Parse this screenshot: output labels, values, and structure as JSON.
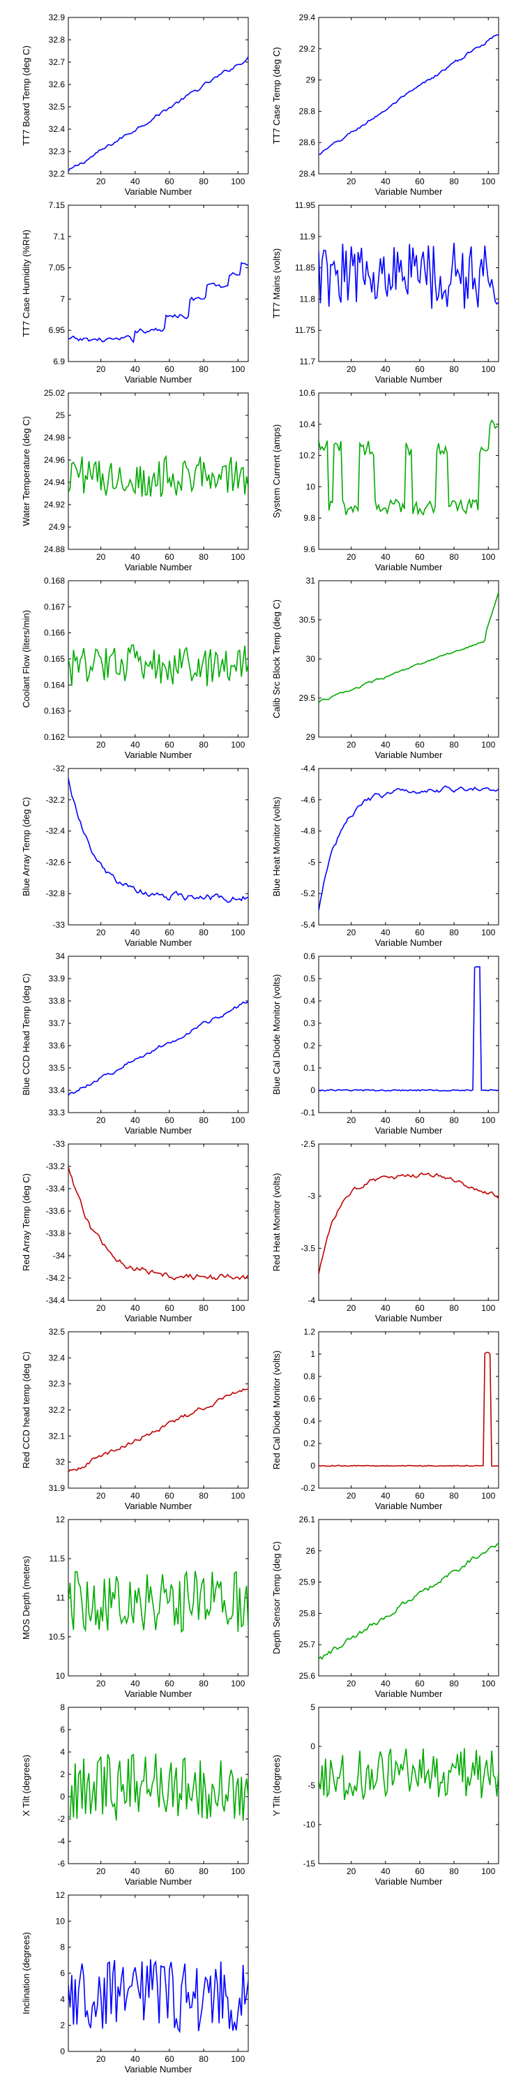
{
  "figure": {
    "colors": {
      "blue": "#0000ff",
      "green": "#00aa00",
      "red": "#c00000",
      "axis": "#000000"
    }
  },
  "chart_data": [
    {
      "type": "line",
      "ylabel": "TT7 Board Temp (deg C)",
      "xlabel": "Variable Number",
      "color": "blue",
      "xlim": [
        1,
        106
      ],
      "ylim": [
        32.2,
        32.9
      ],
      "yticks": [
        "32.2",
        "32.3",
        "32.4",
        "32.5",
        "32.6",
        "32.7",
        "32.8",
        "32.9"
      ],
      "xticks": [
        "20",
        "40",
        "60",
        "80",
        "100"
      ],
      "shape": "trend",
      "start": 32.21,
      "end": 32.72,
      "noise": 0.012
    },
    {
      "type": "line",
      "ylabel": "TT7 Case Temp (deg C)",
      "xlabel": "Variable Number",
      "color": "blue",
      "xlim": [
        1,
        106
      ],
      "ylim": [
        28.4,
        29.4
      ],
      "yticks": [
        "28.4",
        "28.6",
        "28.8",
        "29",
        "29.2",
        "29.4"
      ],
      "xticks": [
        "20",
        "40",
        "60",
        "80",
        "100"
      ],
      "shape": "trend",
      "start": 28.52,
      "end": 29.3,
      "noise": 0.015
    },
    {
      "type": "line",
      "ylabel": "TT7 Case Humidity (%RH)",
      "xlabel": "Variable Number",
      "color": "blue",
      "xlim": [
        1,
        106
      ],
      "ylim": [
        6.9,
        7.15
      ],
      "yticks": [
        "6.9",
        "6.95",
        "7",
        "7.05",
        "7.1",
        "7.15"
      ],
      "xticks": [
        "20",
        "40",
        "60",
        "80",
        "100"
      ],
      "shape": "steps",
      "levels": [
        [
          1,
          6.935
        ],
        [
          40,
          6.95
        ],
        [
          58,
          6.975
        ],
        [
          72,
          7.0
        ],
        [
          82,
          7.02
        ],
        [
          95,
          7.04
        ],
        [
          102,
          7.06
        ]
      ],
      "noise": 0.006
    },
    {
      "type": "line",
      "ylabel": "TT7 Mains  (volts)",
      "xlabel": "Variable Number",
      "color": "blue",
      "xlim": [
        1,
        106
      ],
      "ylim": [
        11.7,
        11.95
      ],
      "yticks": [
        "11.7",
        "11.75",
        "11.8",
        "11.85",
        "11.9",
        "11.95"
      ],
      "xticks": [
        "20",
        "40",
        "60",
        "80",
        "100"
      ],
      "shape": "noise",
      "mean": 11.84,
      "noise": 0.04
    },
    {
      "type": "line",
      "ylabel": "Water Temperature (deg C)",
      "xlabel": "Variable Number",
      "color": "green",
      "xlim": [
        1,
        106
      ],
      "ylim": [
        24.88,
        25.02
      ],
      "yticks": [
        "24.88",
        "24.9",
        "24.92",
        "24.94",
        "24.96",
        "24.98",
        "25",
        "25.02"
      ],
      "xticks": [
        "20",
        "40",
        "60",
        "80",
        "100"
      ],
      "shape": "noise",
      "mean": 24.945,
      "noise": 0.013
    },
    {
      "type": "line",
      "ylabel": "System Current (amps)",
      "xlabel": "Variable Number",
      "color": "green",
      "xlim": [
        1,
        106
      ],
      "ylim": [
        9.6,
        10.6
      ],
      "yticks": [
        "9.6",
        "9.8",
        "10",
        "10.2",
        "10.4",
        "10.6"
      ],
      "xticks": [
        "20",
        "40",
        "60",
        "80",
        "100"
      ],
      "shape": "switch",
      "low": 9.87,
      "high": 10.25,
      "noise": 0.05
    },
    {
      "type": "line",
      "ylabel": "Coolant Flow (liters/min)",
      "xlabel": "Variable Number",
      "color": "green",
      "xlim": [
        1,
        106
      ],
      "ylim": [
        0.162,
        0.168
      ],
      "yticks": [
        "0.162",
        "0.163",
        "0.164",
        "0.165",
        "0.166",
        "0.167",
        "0.168"
      ],
      "xticks": [
        "20",
        "40",
        "60",
        "80",
        "100"
      ],
      "shape": "noise",
      "mean": 0.1647,
      "noise": 0.0006
    },
    {
      "type": "line",
      "ylabel": "Calib Src Block Temp (deg C)",
      "xlabel": "Variable Number",
      "color": "green",
      "xlim": [
        1,
        106
      ],
      "ylim": [
        29,
        31
      ],
      "yticks": [
        "29",
        "29.5",
        "30",
        "30.5",
        "31"
      ],
      "xticks": [
        "20",
        "40",
        "60",
        "80",
        "100"
      ],
      "shape": "trend",
      "start": 29.45,
      "end": 30.3,
      "noise": 0.02,
      "tail": 30.85
    },
    {
      "type": "line",
      "ylabel": "Blue Array Temp (deg C)",
      "xlabel": "Variable Number",
      "color": "blue",
      "xlim": [
        1,
        106
      ],
      "ylim": [
        -33,
        -32
      ],
      "yticks": [
        "-33",
        "-32.8",
        "-32.6",
        "-32.4",
        "-32.2",
        "-32"
      ],
      "xticks": [
        "20",
        "40",
        "60",
        "80",
        "100"
      ],
      "shape": "decay",
      "start": -32.05,
      "end": -32.83,
      "rate": 0.07,
      "noise": 0.03
    },
    {
      "type": "line",
      "ylabel": "Blue Heat Monitor (volts)",
      "xlabel": "Variable Number",
      "color": "blue",
      "xlim": [
        1,
        106
      ],
      "ylim": [
        -5.4,
        -4.4
      ],
      "yticks": [
        "-5.4",
        "-5.2",
        "-5",
        "-4.8",
        "-4.6",
        "-4.4"
      ],
      "xticks": [
        "20",
        "40",
        "60",
        "80",
        "100"
      ],
      "shape": "decay",
      "start": -5.3,
      "end": -4.53,
      "rate": 0.08,
      "noise": 0.025
    },
    {
      "type": "line",
      "ylabel": "Blue CCD Head Temp (deg C)",
      "xlabel": "Variable Number",
      "color": "blue",
      "xlim": [
        1,
        106
      ],
      "ylim": [
        33.3,
        34
      ],
      "yticks": [
        "33.3",
        "33.4",
        "33.5",
        "33.6",
        "33.7",
        "33.8",
        "33.9",
        "34"
      ],
      "xticks": [
        "20",
        "40",
        "60",
        "80",
        "100"
      ],
      "shape": "trend",
      "start": 33.38,
      "end": 33.8,
      "noise": 0.012
    },
    {
      "type": "line",
      "ylabel": "Blue Cal Diode Monitor (volts)",
      "xlabel": "Variable Number",
      "color": "blue",
      "xlim": [
        1,
        106
      ],
      "ylim": [
        -0.1,
        0.6
      ],
      "yticks": [
        "-0.1",
        "0",
        "0.1",
        "0.2",
        "0.3",
        "0.4",
        "0.5",
        "0.6"
      ],
      "xticks": [
        "20",
        "40",
        "60",
        "80",
        "100"
      ],
      "shape": "pulse",
      "base": 0,
      "peak": 0.56,
      "p1": 92,
      "p2": 95,
      "noise": 0.003
    },
    {
      "type": "line",
      "ylabel": "Red Array Temp (deg C)",
      "xlabel": "Variable Number",
      "color": "red",
      "xlim": [
        1,
        106
      ],
      "ylim": [
        -34.4,
        -33
      ],
      "yticks": [
        "-34.4",
        "-34.2",
        "-34",
        "-33.8",
        "-33.6",
        "-33.4",
        "-33.2",
        "-33"
      ],
      "xticks": [
        "20",
        "40",
        "60",
        "80",
        "100"
      ],
      "shape": "decay",
      "start": -33.2,
      "end": -34.2,
      "rate": 0.06,
      "noise": 0.04
    },
    {
      "type": "line",
      "ylabel": "Red Heat Monitor (volts)",
      "xlabel": "Variable Number",
      "color": "red",
      "xlim": [
        1,
        106
      ],
      "ylim": [
        -4,
        -2.5
      ],
      "yticks": [
        "-4",
        "-3.5",
        "-3",
        "-2.5"
      ],
      "xticks": [
        "20",
        "40",
        "60",
        "80",
        "100"
      ],
      "shape": "hump",
      "start": -3.75,
      "peak": -2.8,
      "end": -3.0,
      "noise": 0.03
    },
    {
      "type": "line",
      "ylabel": "Red CCD head temp (deg C)",
      "xlabel": "Variable Number",
      "color": "red",
      "xlim": [
        1,
        106
      ],
      "ylim": [
        31.9,
        32.5
      ],
      "yticks": [
        "31.9",
        "32",
        "32.1",
        "32.2",
        "32.3",
        "32.4",
        "32.5"
      ],
      "xticks": [
        "20",
        "40",
        "60",
        "80",
        "100"
      ],
      "shape": "trend",
      "start": 31.96,
      "end": 32.29,
      "noise": 0.012
    },
    {
      "type": "line",
      "ylabel": "Red Cal Diode Monitor (volts)",
      "xlabel": "Variable Number",
      "color": "red",
      "xlim": [
        1,
        106
      ],
      "ylim": [
        -0.2,
        1.2
      ],
      "yticks": [
        "-0.2",
        "0",
        "0.2",
        "0.4",
        "0.6",
        "0.8",
        "1",
        "1.2"
      ],
      "xticks": [
        "20",
        "40",
        "60",
        "80",
        "100"
      ],
      "shape": "pulse",
      "base": 0,
      "peak": 1.02,
      "p1": 98,
      "p2": 101,
      "noise": 0.004
    },
    {
      "type": "line",
      "ylabel": "MOS Depth  (meters)",
      "xlabel": "Variable Number",
      "color": "green",
      "xlim": [
        1,
        106
      ],
      "ylim": [
        10,
        12
      ],
      "yticks": [
        "10",
        "10.5",
        "11",
        "11.5",
        "12"
      ],
      "xticks": [
        "20",
        "40",
        "60",
        "80",
        "100"
      ],
      "shape": "noise",
      "mean": 10.95,
      "noise": 0.28
    },
    {
      "type": "line",
      "ylabel": "Depth Sensor Temp (deg C)",
      "xlabel": "Variable Number",
      "color": "green",
      "xlim": [
        1,
        106
      ],
      "ylim": [
        25.6,
        26.1
      ],
      "yticks": [
        "25.6",
        "25.7",
        "25.8",
        "25.9",
        "26",
        "26.1"
      ],
      "xticks": [
        "20",
        "40",
        "60",
        "80",
        "100"
      ],
      "shape": "trend",
      "start": 25.65,
      "end": 26.03,
      "noise": 0.012
    },
    {
      "type": "line",
      "ylabel": "X Tilt (degrees)",
      "xlabel": "Variable Number",
      "color": "green",
      "xlim": [
        1,
        106
      ],
      "ylim": [
        -6,
        8
      ],
      "yticks": [
        "-6",
        "-4",
        "-2",
        "0",
        "2",
        "4",
        "6",
        "8"
      ],
      "xticks": [
        "20",
        "40",
        "60",
        "80",
        "100"
      ],
      "shape": "noise",
      "mean": 0.8,
      "noise": 2.2
    },
    {
      "type": "line",
      "ylabel": "Y Tilt (degrees)",
      "xlabel": "Variable Number",
      "color": "green",
      "xlim": [
        1,
        106
      ],
      "ylim": [
        -15,
        5
      ],
      "yticks": [
        "-15",
        "-10",
        "-5",
        "0",
        "5"
      ],
      "xticks": [
        "20",
        "40",
        "60",
        "80",
        "100"
      ],
      "shape": "noise",
      "mean": -3.5,
      "noise": 2.4
    },
    {
      "type": "line",
      "ylabel": "Inclination  (degrees)",
      "xlabel": "Variable Number",
      "color": "blue",
      "xlim": [
        1,
        106
      ],
      "ylim": [
        0,
        12
      ],
      "yticks": [
        "0",
        "2",
        "4",
        "6",
        "8",
        "10",
        "12"
      ],
      "xticks": [
        "20",
        "40",
        "60",
        "80",
        "100"
      ],
      "shape": "noise",
      "mean": 4.3,
      "noise": 2.0,
      "floor": 0.4
    }
  ]
}
